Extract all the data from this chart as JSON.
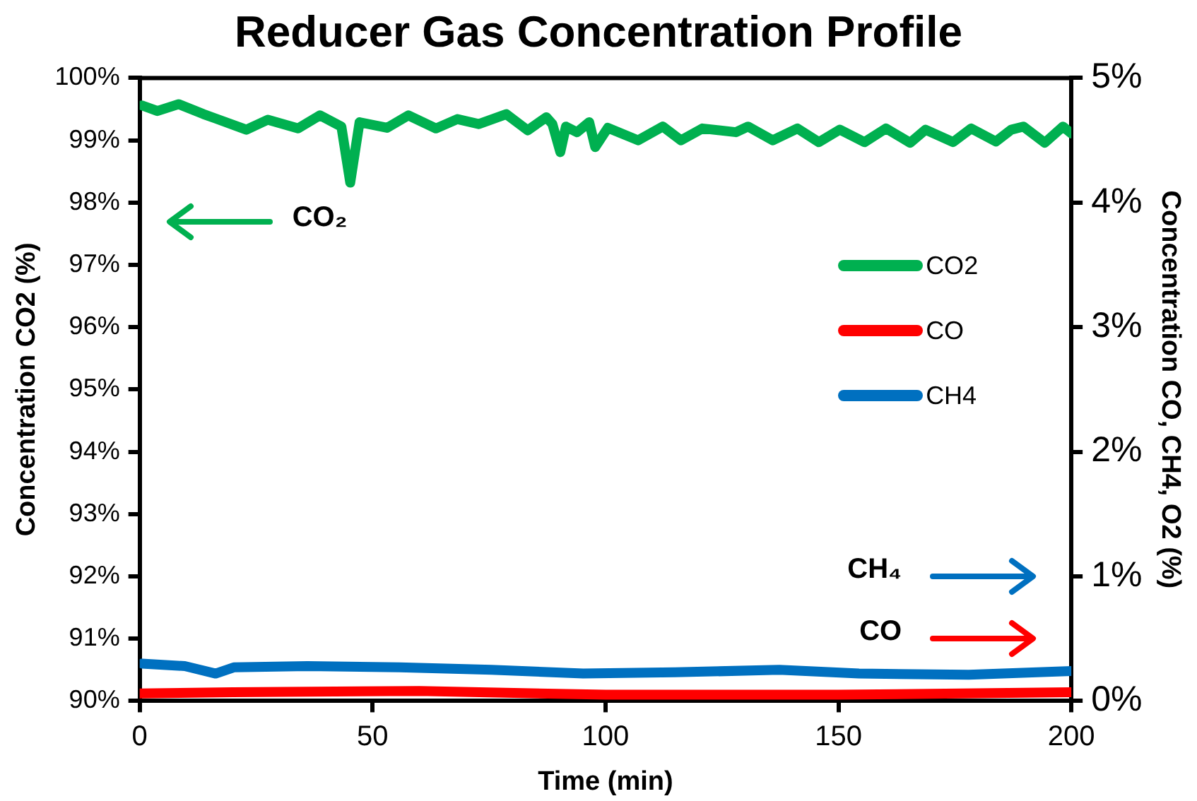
{
  "chart_data": {
    "type": "line",
    "title": "Reducer Gas Concentration Profile",
    "xlabel": "Time (min)",
    "ylabel": "Concentration CO2 (%)",
    "y2label": "Concentration CO, CH4, O2 (%)",
    "xlim": [
      0,
      200
    ],
    "xticks": [
      0,
      50,
      100,
      150,
      200
    ],
    "ylim": [
      90,
      100
    ],
    "yticks": [
      {
        "value": 90,
        "label": "90%"
      },
      {
        "value": 91,
        "label": "91%"
      },
      {
        "value": 92,
        "label": "92%"
      },
      {
        "value": 93,
        "label": "93%"
      },
      {
        "value": 94,
        "label": "94%"
      },
      {
        "value": 95,
        "label": "95%"
      },
      {
        "value": 96,
        "label": "96%"
      },
      {
        "value": 97,
        "label": "97%"
      },
      {
        "value": 98,
        "label": "98%"
      },
      {
        "value": 99,
        "label": "99%"
      },
      {
        "value": 100,
        "label": "100%"
      }
    ],
    "y2lim": [
      0,
      5
    ],
    "y2ticks": [
      {
        "value": 0,
        "label": "0%"
      },
      {
        "value": 1,
        "label": "1%"
      },
      {
        "value": 2,
        "label": "2%"
      },
      {
        "value": 3,
        "label": "3%"
      },
      {
        "value": 4,
        "label": "4%"
      },
      {
        "value": 5,
        "label": "5%"
      }
    ],
    "grid": false,
    "legend": "right",
    "marker": "none",
    "line_style": "solid",
    "annotations": [
      "CO₂",
      "CH₄",
      "CO"
    ],
    "series": [
      {
        "name": "CO2",
        "color": "#00b050",
        "x": [
          0.5,
          3.8,
          8.4,
          13.7,
          16.3,
          22.9,
          27.5,
          34,
          38.7,
          43.3,
          45.2,
          47.2,
          53.1,
          57.7,
          63.6,
          68.2,
          72.8,
          78.7,
          83.3,
          87.3,
          88.6,
          90.3,
          91.5,
          93.9,
          96.5,
          97.8,
          100.5,
          107,
          112.3,
          116.2,
          120.8,
          128,
          130.6,
          135.9,
          141.2,
          145.8,
          150.3,
          155.6,
          160.2,
          165.4,
          168.7,
          174.6,
          178.5,
          183.8,
          187.1,
          189.7,
          194.3,
          198.2,
          200
        ],
        "values": [
          99.56,
          99.47,
          99.58,
          99.42,
          99.35,
          99.17,
          99.33,
          99.19,
          99.4,
          99.22,
          98.32,
          99.29,
          99.2,
          99.4,
          99.19,
          99.34,
          99.26,
          99.42,
          99.16,
          99.37,
          99.26,
          98.81,
          99.22,
          99.13,
          99.29,
          98.89,
          99.2,
          99.0,
          99.22,
          99.0,
          99.19,
          99.13,
          99.22,
          99.0,
          99.19,
          98.97,
          99.17,
          98.97,
          99.19,
          98.96,
          99.17,
          98.97,
          99.19,
          98.98,
          99.17,
          99.22,
          98.96,
          99.22,
          99.11
        ]
      },
      {
        "name": "CO",
        "color": "#ff0000",
        "axis": "y2",
        "x": [
          0,
          20,
          60,
          100,
          150,
          200
        ],
        "values": [
          0.06,
          0.07,
          0.08,
          0.05,
          0.05,
          0.07
        ]
      },
      {
        "name": "CH4",
        "color": "#0070c0",
        "axis": "y2",
        "x": [
          0.5,
          9.7,
          16.3,
          20.2,
          36,
          55.8,
          75.5,
          95.2,
          114.9,
          137.3,
          154.4,
          178,
          200
        ],
        "values": [
          0.3,
          0.28,
          0.22,
          0.27,
          0.28,
          0.27,
          0.25,
          0.22,
          0.23,
          0.25,
          0.22,
          0.21,
          0.24
        ]
      }
    ]
  }
}
